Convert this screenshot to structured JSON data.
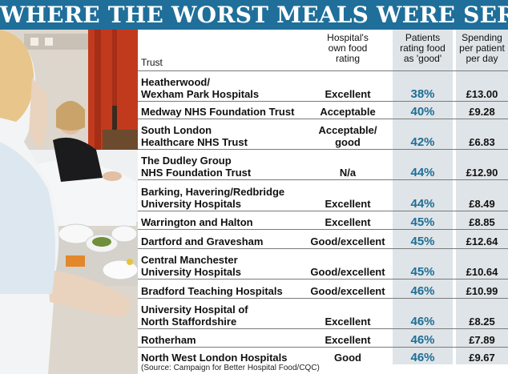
{
  "title": "WHERE THE WORST MEALS WERE SERVED",
  "headers": {
    "trust": "Trust",
    "own_rating": "Hospital's\nown food\nrating",
    "patients_good": "Patients\nrating food\nas 'good'",
    "spending": "Spending\nper patient\nper day"
  },
  "rows": [
    {
      "trust": "Heatherwood/\nWexham Park Hospitals",
      "own_rating": "Excellent",
      "patients_good": "38%",
      "spending": "£13.00"
    },
    {
      "trust": "Medway NHS Foundation Trust",
      "own_rating": "Acceptable",
      "patients_good": "40%",
      "spending": "£9.28"
    },
    {
      "trust": "South London\nHealthcare NHS Trust",
      "own_rating": "Acceptable/\ngood",
      "patients_good": "42%",
      "spending": "£6.83"
    },
    {
      "trust": "The Dudley Group\nNHS Foundation Trust",
      "own_rating": "N/a",
      "patients_good": "44%",
      "spending": "£12.90"
    },
    {
      "trust": "Barking, Havering/Redbridge\nUniversity Hospitals",
      "own_rating": "Excellent",
      "patients_good": "44%",
      "spending": "£8.49"
    },
    {
      "trust": "Warrington and Halton",
      "own_rating": "Excellent",
      "patients_good": "45%",
      "spending": "£8.85"
    },
    {
      "trust": "Dartford and Gravesham",
      "own_rating": "Good/excellent",
      "patients_good": "45%",
      "spending": "£12.64"
    },
    {
      "trust": "Central Manchester\nUniversity Hospitals",
      "own_rating": "Good/excellent",
      "patients_good": "45%",
      "spending": "£10.64"
    },
    {
      "trust": "Bradford Teaching Hospitals",
      "own_rating": "Good/excellent",
      "patients_good": "46%",
      "spending": "£10.99"
    },
    {
      "trust": "University Hospital of\nNorth Staffordshire",
      "own_rating": "Excellent",
      "patients_good": "46%",
      "spending": "£8.25"
    },
    {
      "trust": "Rotherham",
      "own_rating": "Excellent",
      "patients_good": "46%",
      "spending": "£7.89"
    },
    {
      "trust": "North West London Hospitals",
      "own_rating": "Good",
      "patients_good": "46%",
      "spending": "£9.67"
    }
  ],
  "source": "(Source: Campaign for Better Hospital Food/CQC)",
  "colors": {
    "banner": "#1f6f9a",
    "percent": "#1e6e95",
    "band": "#dfe4e8"
  }
}
